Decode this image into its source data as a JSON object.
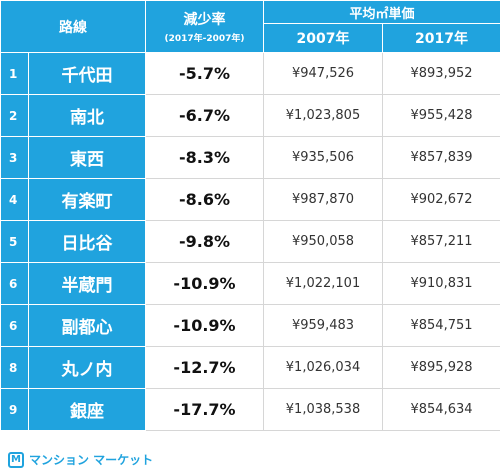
{
  "header": {
    "route": "路線",
    "rate_title": "減少率",
    "rate_sub": "(2017年-2007年)",
    "price": "平均㎡単価",
    "year1": "2007年",
    "year2": "2017年"
  },
  "rows": [
    {
      "rank": "1",
      "line": "千代田",
      "rate": "-5.7%",
      "p2007": "¥947,526",
      "p2017": "¥893,952"
    },
    {
      "rank": "2",
      "line": "南北",
      "rate": "-6.7%",
      "p2007": "¥1,023,805",
      "p2017": "¥955,428"
    },
    {
      "rank": "3",
      "line": "東西",
      "rate": "-8.3%",
      "p2007": "¥935,506",
      "p2017": "¥857,839"
    },
    {
      "rank": "4",
      "line": "有楽町",
      "rate": "-8.6%",
      "p2007": "¥987,870",
      "p2017": "¥902,672"
    },
    {
      "rank": "5",
      "line": "日比谷",
      "rate": "-9.8%",
      "p2007": "¥950,058",
      "p2017": "¥857,211"
    },
    {
      "rank": "6",
      "line": "半蔵門",
      "rate": "-10.9%",
      "p2007": "¥1,022,101",
      "p2017": "¥910,831"
    },
    {
      "rank": "6",
      "line": "副都心",
      "rate": "-10.9%",
      "p2007": "¥959,483",
      "p2017": "¥854,751"
    },
    {
      "rank": "8",
      "line": "丸ノ内",
      "rate": "-12.7%",
      "p2007": "¥1,026,034",
      "p2017": "¥895,928"
    },
    {
      "rank": "9",
      "line": "銀座",
      "rate": "-17.7%",
      "p2007": "¥1,038,538",
      "p2017": "¥854,634"
    }
  ],
  "footer": {
    "logo_letter": "M",
    "brand": "マンション マーケット"
  },
  "colors": {
    "accent": "#20a3de"
  }
}
